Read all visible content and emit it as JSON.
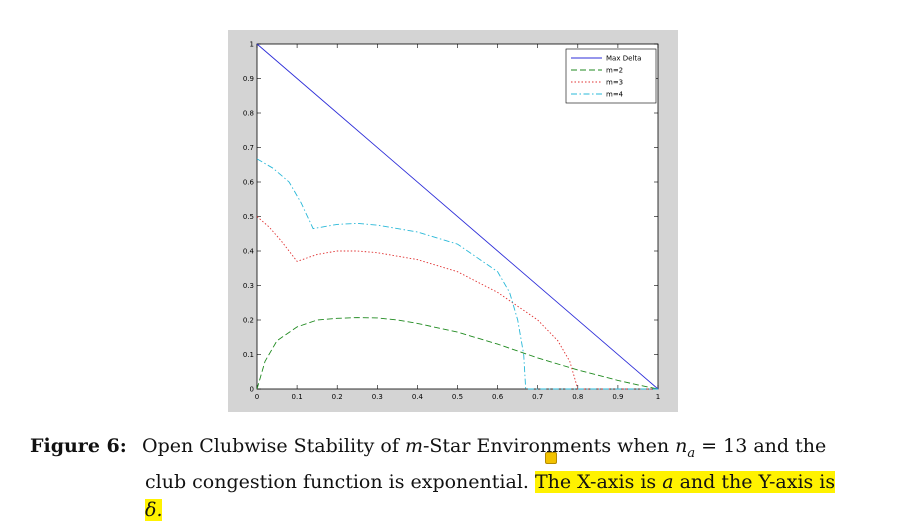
{
  "caption": {
    "label": "Figure 6:",
    "line1_pre": "Open Clubwise Stability of ",
    "line1_m": "m",
    "line1_mid": "-Star Environments when ",
    "line1_n": "n",
    "line1_sub": "a",
    "line1_post": " = 13 and the",
    "line2_pre": "club congestion function is exponential. ",
    "line2_hl1": "The X-axis is ",
    "line2_a": "a",
    "line2_hl2": " and the Y-axis is",
    "line3_delta": "δ."
  },
  "colors": {
    "frame": "#d4d4d4",
    "max_delta": "#2c2cd8",
    "m2": "#1f8a1f",
    "m3": "#e03030",
    "m4": "#29b8d8",
    "highlight": "#fff200"
  },
  "chart_data": {
    "type": "line",
    "title": "",
    "xlabel": "",
    "ylabel": "",
    "xlim": [
      0,
      1
    ],
    "ylim": [
      0,
      1
    ],
    "xticks": [
      "0",
      "0.1",
      "0.2",
      "0.3",
      "0.4",
      "0.5",
      "0.6",
      "0.7",
      "0.8",
      "0.9",
      "1"
    ],
    "yticks": [
      "0",
      "0.1",
      "0.2",
      "0.3",
      "0.4",
      "0.5",
      "0.6",
      "0.7",
      "0.8",
      "0.9",
      "1"
    ],
    "grid": false,
    "legend_position": "top-right",
    "series": [
      {
        "name": "Max Delta",
        "style": "solid",
        "x": [
          0,
          1
        ],
        "y": [
          1,
          0
        ]
      },
      {
        "name": "m=2",
        "style": "dashed",
        "x": [
          0,
          0.02,
          0.05,
          0.1,
          0.15,
          0.2,
          0.25,
          0.3,
          0.35,
          0.4,
          0.5,
          0.6,
          0.7,
          0.8,
          0.9,
          0.95,
          1
        ],
        "y": [
          0,
          0.08,
          0.14,
          0.18,
          0.2,
          0.205,
          0.207,
          0.206,
          0.2,
          0.19,
          0.165,
          0.13,
          0.09,
          0.055,
          0.025,
          0.012,
          0
        ]
      },
      {
        "name": "m=3",
        "style": "dotted",
        "x": [
          0,
          0.03,
          0.06,
          0.1,
          0.15,
          0.2,
          0.25,
          0.3,
          0.4,
          0.5,
          0.6,
          0.7,
          0.75,
          0.78,
          0.8,
          0.9,
          1
        ],
        "y": [
          0.5,
          0.47,
          0.43,
          0.37,
          0.39,
          0.4,
          0.4,
          0.395,
          0.375,
          0.34,
          0.28,
          0.2,
          0.14,
          0.08,
          0,
          0,
          0
        ]
      },
      {
        "name": "m=4",
        "style": "dashdot",
        "x": [
          0,
          0.04,
          0.08,
          0.11,
          0.14,
          0.2,
          0.25,
          0.3,
          0.4,
          0.5,
          0.6,
          0.63,
          0.65,
          0.665,
          0.67,
          0.8,
          0.9,
          1
        ],
        "y": [
          0.667,
          0.64,
          0.6,
          0.54,
          0.465,
          0.477,
          0.48,
          0.475,
          0.455,
          0.42,
          0.34,
          0.28,
          0.2,
          0.1,
          0,
          0,
          0,
          0
        ]
      }
    ]
  }
}
